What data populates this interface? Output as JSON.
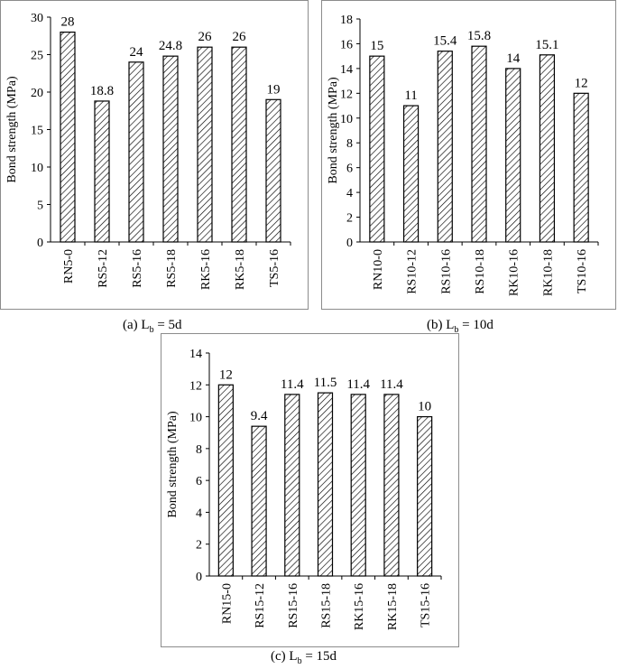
{
  "chart_data": [
    {
      "type": "bar",
      "ylabel": "Bond strength (MPa)",
      "categories": [
        "RN5-0",
        "RS5-12",
        "RS5-16",
        "RS5-18",
        "RK5-16",
        "RK5-18",
        "TS5-16"
      ],
      "values": [
        28,
        18.8,
        24,
        24.8,
        26,
        26,
        19
      ],
      "labels": [
        "28",
        "18.8",
        "24",
        "24.8",
        "26",
        "26",
        "19"
      ],
      "ylim": [
        0,
        30
      ],
      "yticks": [
        0,
        5,
        10,
        15,
        20,
        25,
        30
      ],
      "grid": false,
      "caption": {
        "prefix": "(a) L",
        "sub": "b",
        "suffix": " = 5d"
      }
    },
    {
      "type": "bar",
      "ylabel": "Bond strength (MPa)",
      "categories": [
        "RN10-0",
        "RS10-12",
        "RS10-16",
        "RS10-18",
        "RK10-16",
        "RK10-18",
        "TS10-16"
      ],
      "values": [
        15,
        11,
        15.4,
        15.8,
        14,
        15.1,
        12
      ],
      "labels": [
        "15",
        "11",
        "15.4",
        "15.8",
        "14",
        "15.1",
        "12"
      ],
      "ylim": [
        0,
        18
      ],
      "yticks": [
        0,
        2,
        4,
        6,
        8,
        10,
        12,
        14,
        16,
        18
      ],
      "grid": false,
      "caption": {
        "prefix": "(b) L",
        "sub": "b",
        "suffix": " = 10d"
      }
    },
    {
      "type": "bar",
      "ylabel": "Bond strength (MPa)",
      "categories": [
        "RN15-0",
        "RS15-12",
        "RS15-16",
        "RS15-18",
        "RK15-16",
        "RK15-18",
        "TS15-16"
      ],
      "values": [
        12,
        9.4,
        11.4,
        11.5,
        11.4,
        11.4,
        10
      ],
      "labels": [
        "12",
        "9.4",
        "11.4",
        "11.5",
        "11.4",
        "11.4",
        "10"
      ],
      "ylim": [
        0,
        14
      ],
      "yticks": [
        0,
        2,
        4,
        6,
        8,
        10,
        12,
        14
      ],
      "grid": false,
      "caption": {
        "prefix": "(c) L",
        "sub": "b",
        "suffix": " = 15d"
      }
    }
  ]
}
